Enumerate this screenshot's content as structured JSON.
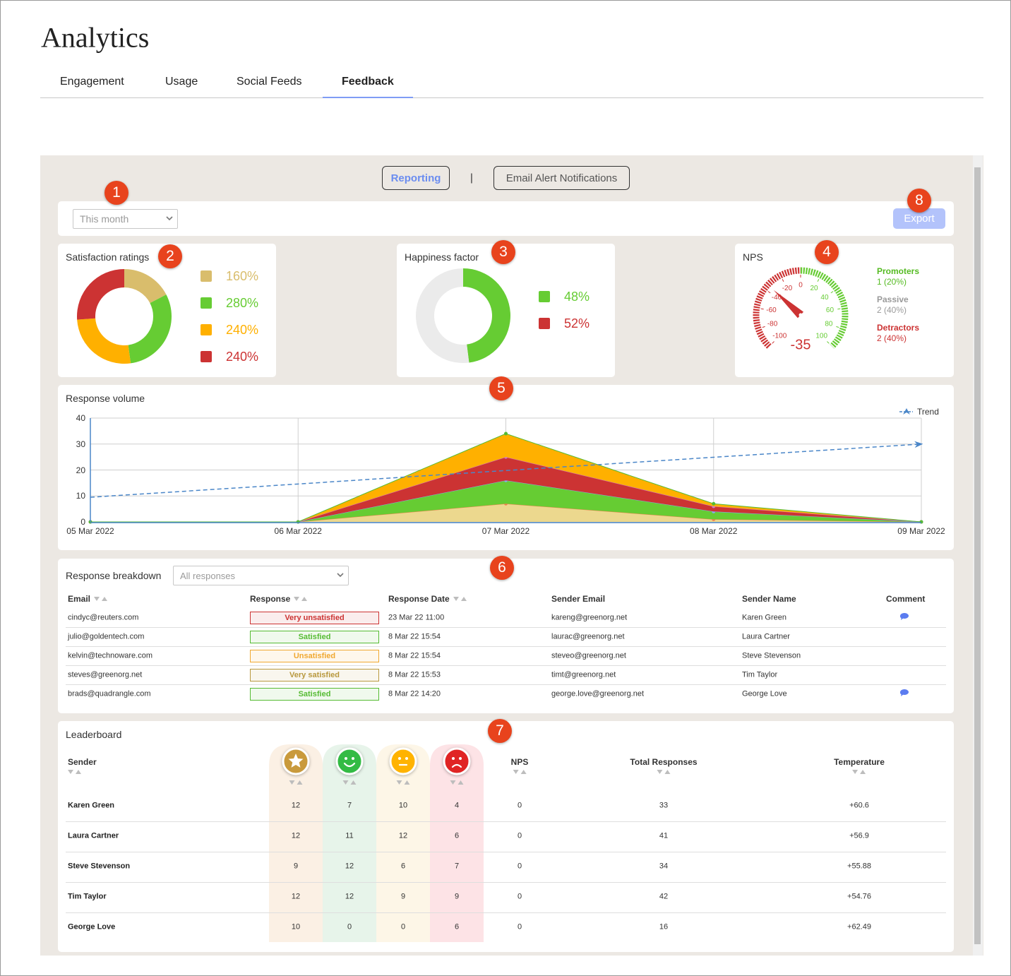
{
  "header": {
    "title": "Analytics",
    "tabs": [
      "Engagement",
      "Usage",
      "Social Feeds",
      "Feedback"
    ],
    "active_tab": 3
  },
  "subtabs": {
    "items": [
      "Reporting",
      "Email Alert Notifications"
    ],
    "separator": "|",
    "active": 0
  },
  "markers": [
    1,
    2,
    3,
    4,
    5,
    6,
    7,
    8
  ],
  "filter": {
    "period": "This month",
    "export": "Export"
  },
  "satisfaction": {
    "title": "Satisfaction ratings",
    "type": "pie",
    "values": [
      160,
      280,
      240,
      240
    ],
    "value_labels": [
      "160%",
      "280%",
      "240%",
      "240%"
    ],
    "colors": [
      "#d9bd6c",
      "#66cc33",
      "#ffb000",
      "#cc3333"
    ]
  },
  "happiness": {
    "title": "Happiness factor",
    "type": "pie",
    "values": [
      48,
      52
    ],
    "value_labels": [
      "48%",
      "52%"
    ],
    "colors": [
      "#66cc33",
      "#cc3333"
    ],
    "ring_colors": [
      "#66cc33",
      "#ebebeb"
    ]
  },
  "nps": {
    "title": "NPS",
    "type": "gauge",
    "value": -35,
    "range": [
      -100,
      100
    ],
    "ticks": [
      -100,
      -80,
      -60,
      -40,
      -20,
      0,
      20,
      40,
      60,
      80,
      100
    ],
    "colors": {
      "negative": "#cc3333",
      "positive": "#66cc33"
    },
    "groups": [
      {
        "label": "Promoters",
        "text": "1 (20%)",
        "color": "#55bb22"
      },
      {
        "label": "Passive",
        "text": "2 (40%)",
        "color": "#9a9a9a"
      },
      {
        "label": "Detractors",
        "text": "2 (40%)",
        "color": "#cc3333"
      }
    ]
  },
  "volume": {
    "title": "Response volume",
    "type": "area",
    "stacked": true,
    "x": [
      "05 Mar 2022",
      "06 Mar 2022",
      "07 Mar 2022",
      "08 Mar 2022",
      "09 Mar 2022"
    ],
    "ylim": [
      0,
      40
    ],
    "yticks": [
      0,
      10,
      20,
      30,
      40
    ],
    "grid": true,
    "legend": "top-right",
    "series": [
      {
        "color": "#ecd88e",
        "marker_color": "#f08050",
        "values": [
          0,
          0,
          7,
          1,
          0
        ]
      },
      {
        "color": "#66cc33",
        "marker_color": "#88aaee",
        "values": [
          0,
          0,
          9,
          3,
          0
        ]
      },
      {
        "color": "#cc3333",
        "marker_color": "#cc77cc",
        "values": [
          0,
          0,
          9,
          2,
          0
        ]
      },
      {
        "color": "#ffb000",
        "marker_color": "#55bb33",
        "values": [
          0,
          0,
          9,
          1,
          0
        ]
      },
      {
        "name": "Trend",
        "type": "line",
        "dashed": true,
        "color": "#4a86c8",
        "values": [
          9.5,
          14.6,
          19.8,
          24.9,
          30
        ]
      }
    ]
  },
  "breakdown": {
    "title": "Response breakdown",
    "filter": "All responses",
    "columns": [
      "Email",
      "Response",
      "Response Date",
      "Sender Email",
      "Sender Name",
      "Comment"
    ],
    "sortable": [
      true,
      true,
      true,
      false,
      false,
      false
    ],
    "rows": [
      [
        "cindyc@reuters.com",
        "Very unsatisfied",
        "23 Mar 22 11:00",
        "kareng@greenorg.net",
        "Karen Green"
      ],
      [
        "julio@goldentech.com",
        "Satisfied",
        "8 Mar 22 15:54",
        "laurac@greenorg.net",
        "Laura Cartner"
      ],
      [
        "kelvin@technoware.com",
        "Unsatisfied",
        "8 Mar 22 15:54",
        "steveo@greenorg.net",
        "Steve Stevenson"
      ],
      [
        "steves@greenorg.net",
        "Very satisfied",
        "8 Mar 22 15:53",
        "timt@greenorg.net",
        "Tim Taylor"
      ],
      [
        "brads@quadrangle.com",
        "Satisfied",
        "8 Mar 22 14:20",
        "george.love@greenorg.net",
        "George Love"
      ]
    ],
    "response_colors": [
      "#cc3333",
      "#55bb33",
      "#f0a830",
      "#b8983e",
      "#55bb33"
    ],
    "comments": [
      true,
      false,
      false,
      false,
      true
    ]
  },
  "leaderboard": {
    "title": "Leaderboard",
    "columns": {
      "sender": "Sender",
      "nps": "NPS",
      "total": "Total Responses",
      "temperature": "Temperature"
    },
    "rating_colors": [
      "#c99a3c",
      "#33bb44",
      "#ffb300",
      "#e02424"
    ],
    "band_colors": [
      "#fbf0e4",
      "#e7f4ea",
      "#fdf6e7",
      "#fde3e6"
    ],
    "rows": [
      {
        "sender": "Karen Green",
        "ratings": [
          12,
          7,
          10,
          4
        ],
        "nps": 0,
        "total": 33,
        "temperature": "+60.6"
      },
      {
        "sender": "Laura Cartner",
        "ratings": [
          12,
          11,
          12,
          6
        ],
        "nps": 0,
        "total": 41,
        "temperature": "+56.9"
      },
      {
        "sender": "Steve Stevenson",
        "ratings": [
          9,
          12,
          6,
          7
        ],
        "nps": 0,
        "total": 34,
        "temperature": "+55.88"
      },
      {
        "sender": "Tim Taylor",
        "ratings": [
          12,
          12,
          9,
          9
        ],
        "nps": 0,
        "total": 42,
        "temperature": "+54.76"
      },
      {
        "sender": "George Love",
        "ratings": [
          10,
          0,
          0,
          6
        ],
        "nps": 0,
        "total": 16,
        "temperature": "+62.49"
      }
    ]
  }
}
